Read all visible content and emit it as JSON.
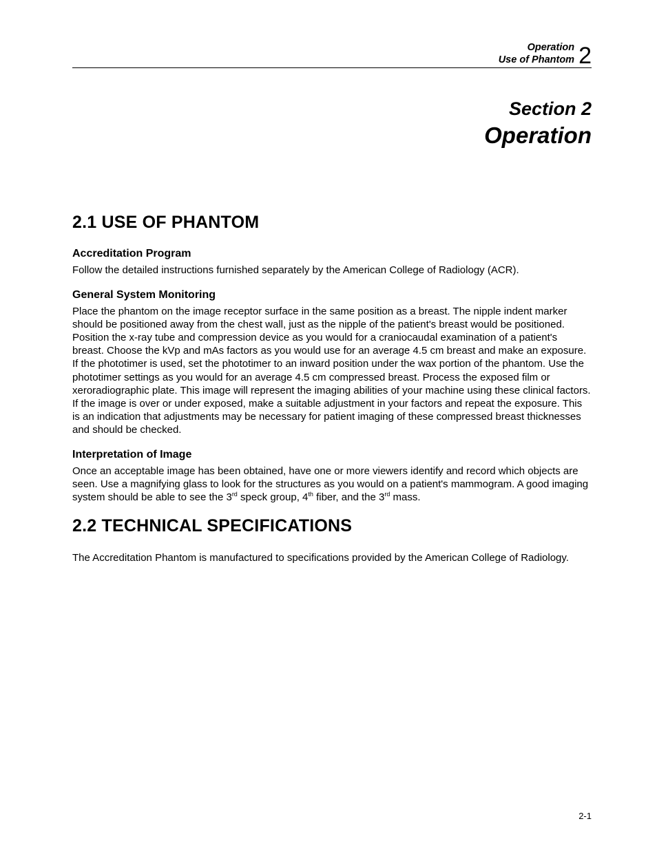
{
  "header": {
    "line1": "Operation",
    "line2": "Use of Phantom",
    "chapter_number": "2"
  },
  "section_title": {
    "line1": "Section 2",
    "line2": "Operation"
  },
  "section_21": {
    "heading": "2.1 USE OF PHANTOM",
    "accreditation": {
      "heading": "Accreditation Program",
      "body": "Follow the detailed instructions furnished separately by the American College of Radiology (ACR)."
    },
    "monitoring": {
      "heading": "General System Monitoring",
      "body": "Place the phantom on the image receptor surface in the same position as a breast.  The nipple indent marker should be positioned away from the chest wall, just as the nipple of the patient's breast would be positioned.  Position the x-ray tube and compression device as you would for a craniocaudal examination of a patient's breast.  Choose the kVp and mAs factors as you would use for an average 4.5 cm breast and make an exposure.  If the phototimer is used, set the phototimer to an inward position under the wax portion of the phantom.  Use the phototimer settings as you would for an average 4.5 cm compressed breast.  Process the exposed film or xeroradiographic plate.  This image will represent the imaging abilities of your machine using these clinical factors.  If the image is over or under exposed, make a suitable adjustment in your factors and repeat the exposure.  This is an indication that adjustments may be necessary for patient imaging of these compressed breast thicknesses and should be checked."
    },
    "interpretation": {
      "heading": "Interpretation of Image",
      "body_html": "Once an acceptable image has been obtained, have one or more viewers identify and record which objects are seen.  Use a magnifying glass to look for the structures as you would on a patient's mammogram.  A good imaging system should be able to see the 3<sup>rd</sup> speck group, 4<sup>th</sup> fiber, and the 3<sup>rd</sup> mass."
    }
  },
  "section_22": {
    "heading": "2.2 TECHNICAL SPECIFICATIONS",
    "body": "The Accreditation Phantom is manufactured to specifications provided by the American College of Radiology."
  },
  "footer": {
    "page_number": "2-1"
  }
}
